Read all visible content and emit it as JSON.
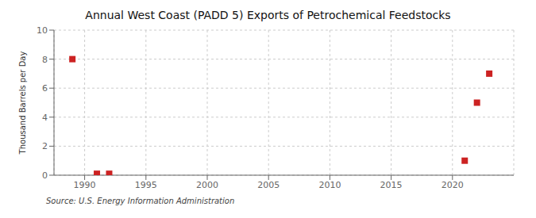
{
  "chart_data": {
    "type": "scatter",
    "title": "Annual West Coast (PADD 5) Exports of Petrochemical Feedstocks",
    "ylabel": "Thousand Barrels per Day",
    "source": "Source: U.S. Energy Information Administration",
    "x": [
      1989,
      1991,
      1992,
      2021,
      2022,
      2023
    ],
    "values": [
      8.0,
      0.1,
      0.1,
      1.0,
      5.0,
      7.0
    ],
    "color": "#cc2222",
    "marker": "square",
    "xlim": [
      1987.5,
      2025
    ],
    "ylim": [
      0,
      10
    ],
    "xticks": [
      1990,
      1995,
      2000,
      2005,
      2010,
      2015,
      2020
    ],
    "yticks": [
      0,
      2,
      4,
      6,
      8,
      10
    ],
    "grid": true
  }
}
